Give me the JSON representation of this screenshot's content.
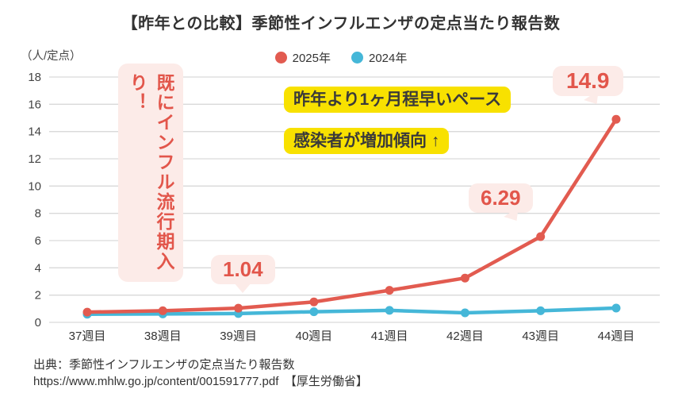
{
  "title": "【昨年との比較】季節性インフルエンザの定点当たり報告数",
  "chart_data": {
    "type": "line",
    "title": "【昨年との比較】季節性インフルエンザの定点当たり報告数",
    "unit_label": "（人/定点）",
    "categories": [
      "37週目",
      "38週目",
      "39週目",
      "40週目",
      "41週目",
      "42週目",
      "43週目",
      "44週目"
    ],
    "series": [
      {
        "name": "2025年",
        "color": "#e25b50",
        "values": [
          0.75,
          0.85,
          1.04,
          1.5,
          2.35,
          3.25,
          6.29,
          14.9
        ]
      },
      {
        "name": "2024年",
        "color": "#45b7d8",
        "values": [
          0.6,
          0.62,
          0.65,
          0.78,
          0.88,
          0.7,
          0.85,
          1.05
        ]
      }
    ],
    "ylim": [
      0,
      18
    ],
    "ytick_step": 2,
    "grid": true,
    "legend_position": "top-center",
    "xlabel": "",
    "ylabel": "（人/定点）"
  },
  "annotations": {
    "vertical_note": "既にインフル流行期入り！",
    "highlight_line1": "昨年より1ヶ月程早いペース",
    "highlight_line2": "感染者が増加傾向 ↑",
    "callouts": [
      {
        "label": "1.04",
        "week": "39週目"
      },
      {
        "label": "6.29",
        "week": "43週目"
      },
      {
        "label": "14.9",
        "week": "44週目"
      }
    ]
  },
  "footer": {
    "line1": "出典：季節性インフルエンザの定点当たり報告数",
    "line2": "https://www.mhlw.go.jp/content/001591777.pdf　【厚生労働省】"
  },
  "colors": {
    "series_2025": "#e25b50",
    "series_2024": "#45b7d8",
    "bubble_bg": "#fcebe8",
    "bubble_text": "#e2564b",
    "highlight_bg": "#f8e100",
    "gridline": "#d9d9d9",
    "text": "#333333"
  }
}
